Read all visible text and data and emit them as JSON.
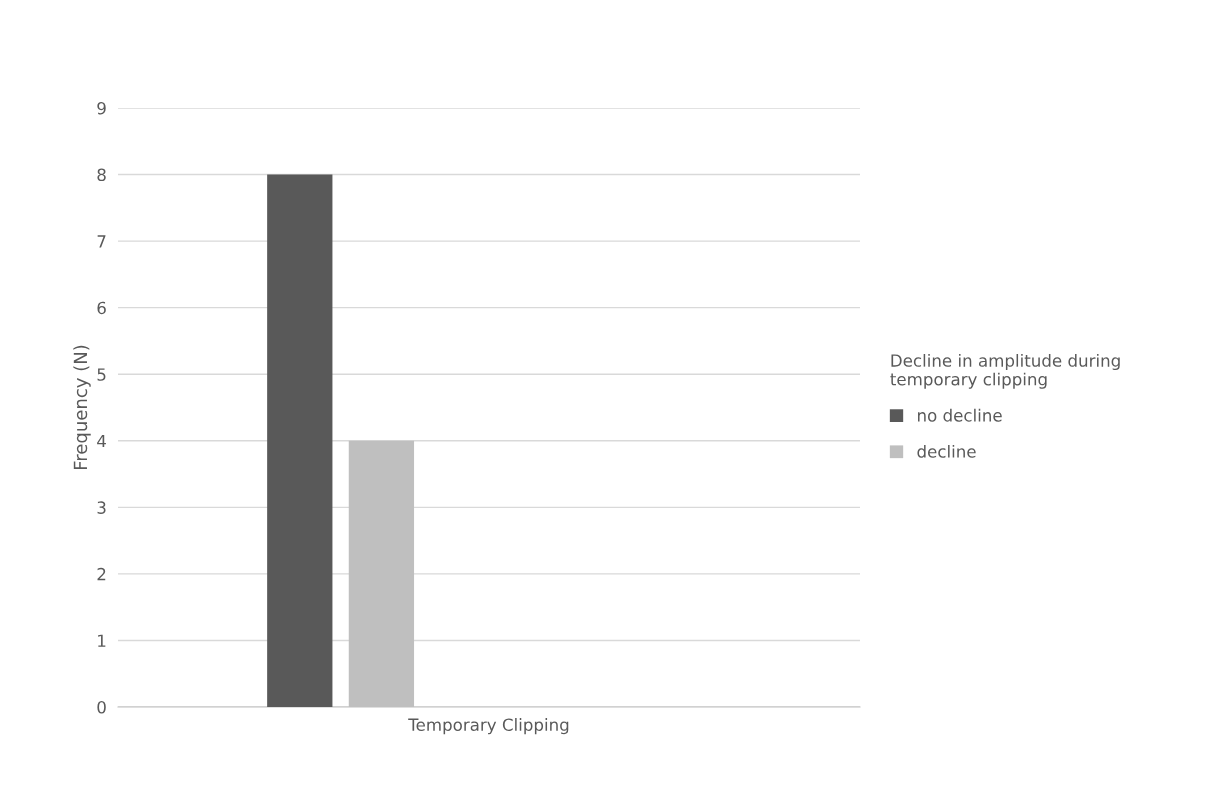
{
  "chart_data": {
    "type": "bar",
    "ylabel": "Frequency (N)",
    "legend_title": "Decline in amplitude during\ntemporary clipping",
    "categories": [
      "Temporary Clipping"
    ],
    "series": [
      {
        "name": "no decline",
        "color": "#595959",
        "values": [
          8
        ]
      },
      {
        "name": "decline",
        "color": "#bfbfbf",
        "values": [
          4
        ]
      }
    ],
    "ylim": [
      0,
      9
    ],
    "yticks": [
      0,
      1,
      2,
      3,
      4,
      5,
      6,
      7,
      8,
      9
    ],
    "grid": "y",
    "legend": "right"
  }
}
